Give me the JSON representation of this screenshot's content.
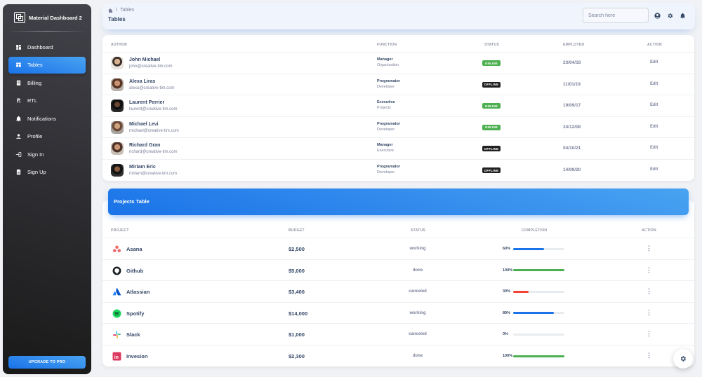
{
  "brand": {
    "name": "Material Dashboard 2"
  },
  "sidebar": {
    "items": [
      {
        "label": "Dashboard",
        "icon": "dashboard-icon"
      },
      {
        "label": "Tables",
        "icon": "table-icon",
        "active": true
      },
      {
        "label": "Billing",
        "icon": "receipt-icon"
      },
      {
        "label": "RTL",
        "icon": "format-align-icon"
      },
      {
        "label": "Notifications",
        "icon": "bell-icon"
      },
      {
        "label": "Profile",
        "icon": "person-icon"
      },
      {
        "label": "Sign In",
        "icon": "login-icon"
      },
      {
        "label": "Sign Up",
        "icon": "assignment-icon"
      }
    ],
    "upgrade_label": "UPGRADE TO PRO"
  },
  "topbar": {
    "breadcrumb_separator": "/",
    "breadcrumb_current": "Tables",
    "title": "Tables",
    "search_placeholder": "Search here"
  },
  "authors_table": {
    "headers": {
      "author": "AUTHOR",
      "function": "FUNCTION",
      "status": "STATUS",
      "employed": "EMPLOYED",
      "action": "ACTION"
    },
    "rows": [
      {
        "name": "John Michael",
        "email": "john@creative-tim.com",
        "title": "Manager",
        "org": "Organization",
        "status": "ONLINE",
        "employed": "23/04/18",
        "action": "Edit"
      },
      {
        "name": "Alexa Liras",
        "email": "alexa@creative-tim.com",
        "title": "Programator",
        "org": "Developer",
        "status": "OFFLINE",
        "employed": "11/01/19",
        "action": "Edit"
      },
      {
        "name": "Laurent Perrier",
        "email": "laurent@creative-tim.com",
        "title": "Executive",
        "org": "Projects",
        "status": "ONLINE",
        "employed": "19/09/17",
        "action": "Edit"
      },
      {
        "name": "Michael Levi",
        "email": "michael@creative-tim.com",
        "title": "Programator",
        "org": "Developer",
        "status": "ONLINE",
        "employed": "24/12/08",
        "action": "Edit"
      },
      {
        "name": "Richard Gran",
        "email": "richard@creative-tim.com",
        "title": "Manager",
        "org": "Executive",
        "status": "OFFLINE",
        "employed": "04/10/21",
        "action": "Edit"
      },
      {
        "name": "Miriam Eric",
        "email": "miriam@creative-tim.com",
        "title": "Programator",
        "org": "Developer",
        "status": "OFFLINE",
        "employed": "14/09/20",
        "action": "Edit"
      }
    ]
  },
  "projects_table": {
    "title": "Projects Table",
    "headers": {
      "project": "PROJECT",
      "budget": "BUDGET",
      "status": "STATUS",
      "completion": "COMPLETION",
      "action": "ACTION"
    },
    "rows": [
      {
        "name": "Asana",
        "icon": "asana-icon",
        "budget": "$2,500",
        "status": "working",
        "completion": 60,
        "completion_label": "60%",
        "bar_color": "#1a73e8"
      },
      {
        "name": "Github",
        "icon": "github-icon",
        "budget": "$5,000",
        "status": "done",
        "completion": 100,
        "completion_label": "100%",
        "bar_color": "#4caf50"
      },
      {
        "name": "Atlassian",
        "icon": "atlassian-icon",
        "budget": "$3,400",
        "status": "canceled",
        "completion": 30,
        "completion_label": "30%",
        "bar_color": "#f44335"
      },
      {
        "name": "Spotify",
        "icon": "spotify-icon",
        "budget": "$14,000",
        "status": "working",
        "completion": 80,
        "completion_label": "80%",
        "bar_color": "#1a73e8"
      },
      {
        "name": "Slack",
        "icon": "slack-icon",
        "budget": "$1,000",
        "status": "canceled",
        "completion": 0,
        "completion_label": "0%",
        "bar_color": "#1a73e8"
      },
      {
        "name": "Invesion",
        "icon": "invision-icon",
        "budget": "$2,300",
        "status": "done",
        "completion": 100,
        "completion_label": "100%",
        "bar_color": "#4caf50"
      }
    ]
  },
  "colors": {
    "online": "#4caf50",
    "offline": "#212121",
    "accent": "#1a73e8"
  }
}
